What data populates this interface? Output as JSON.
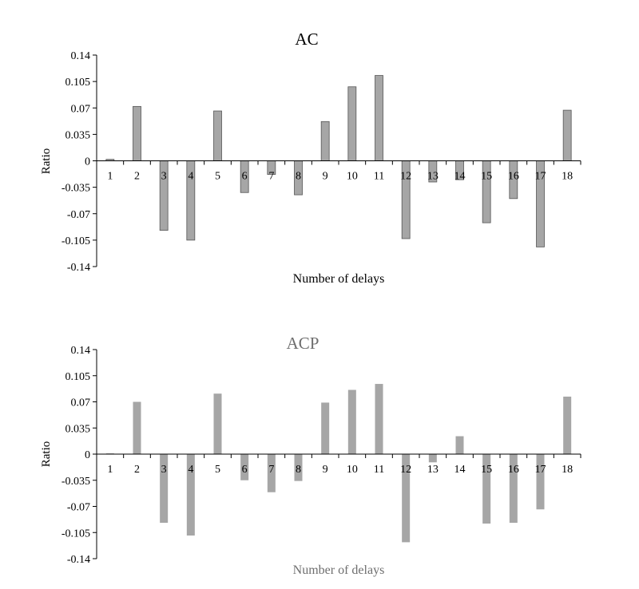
{
  "chart_data": [
    {
      "type": "bar",
      "title": "AC",
      "xlabel": "Number of delays",
      "ylabel": "Ratio",
      "ylim": [
        -0.14,
        0.14
      ],
      "yticks": [
        "0.14",
        "0.105",
        "0.07",
        "0.035",
        "0",
        "-0.035",
        "-0.07",
        "-0.105",
        "-0.14"
      ],
      "categories": [
        "1",
        "2",
        "3",
        "4",
        "5",
        "6",
        "7",
        "8",
        "9",
        "10",
        "11",
        "12",
        "13",
        "14",
        "15",
        "16",
        "17",
        "18"
      ],
      "values": [
        0.002,
        0.072,
        -0.092,
        -0.105,
        0.066,
        -0.042,
        -0.018,
        -0.045,
        0.052,
        0.098,
        0.113,
        -0.103,
        -0.028,
        -0.025,
        -0.082,
        -0.05,
        -0.114,
        0.067
      ],
      "bar_color": "#a6a6a6",
      "bar_stroke": "#555555",
      "title_color": "#000000",
      "xlabel_color": "#000000"
    },
    {
      "type": "bar",
      "title": "ACP",
      "xlabel": "Number of delays",
      "ylabel": "Ratio",
      "ylim": [
        -0.14,
        0.14
      ],
      "yticks": [
        "0.14",
        "0.105",
        "0.07",
        "0.035",
        "0",
        "-0.035",
        "-0.07",
        "-0.105",
        "-0.14"
      ],
      "categories": [
        "1",
        "2",
        "3",
        "4",
        "5",
        "6",
        "7",
        "8",
        "9",
        "10",
        "11",
        "12",
        "13",
        "14",
        "15",
        "16",
        "17",
        "18"
      ],
      "values": [
        0.001,
        0.07,
        -0.092,
        -0.109,
        0.081,
        -0.035,
        -0.051,
        -0.036,
        0.069,
        0.086,
        0.094,
        -0.118,
        -0.011,
        0.024,
        -0.093,
        -0.092,
        -0.074,
        0.077
      ],
      "bar_color": "#a6a6a6",
      "bar_stroke": "none",
      "title_color": "#6e6e6e",
      "xlabel_color": "#6e6e6e"
    }
  ]
}
